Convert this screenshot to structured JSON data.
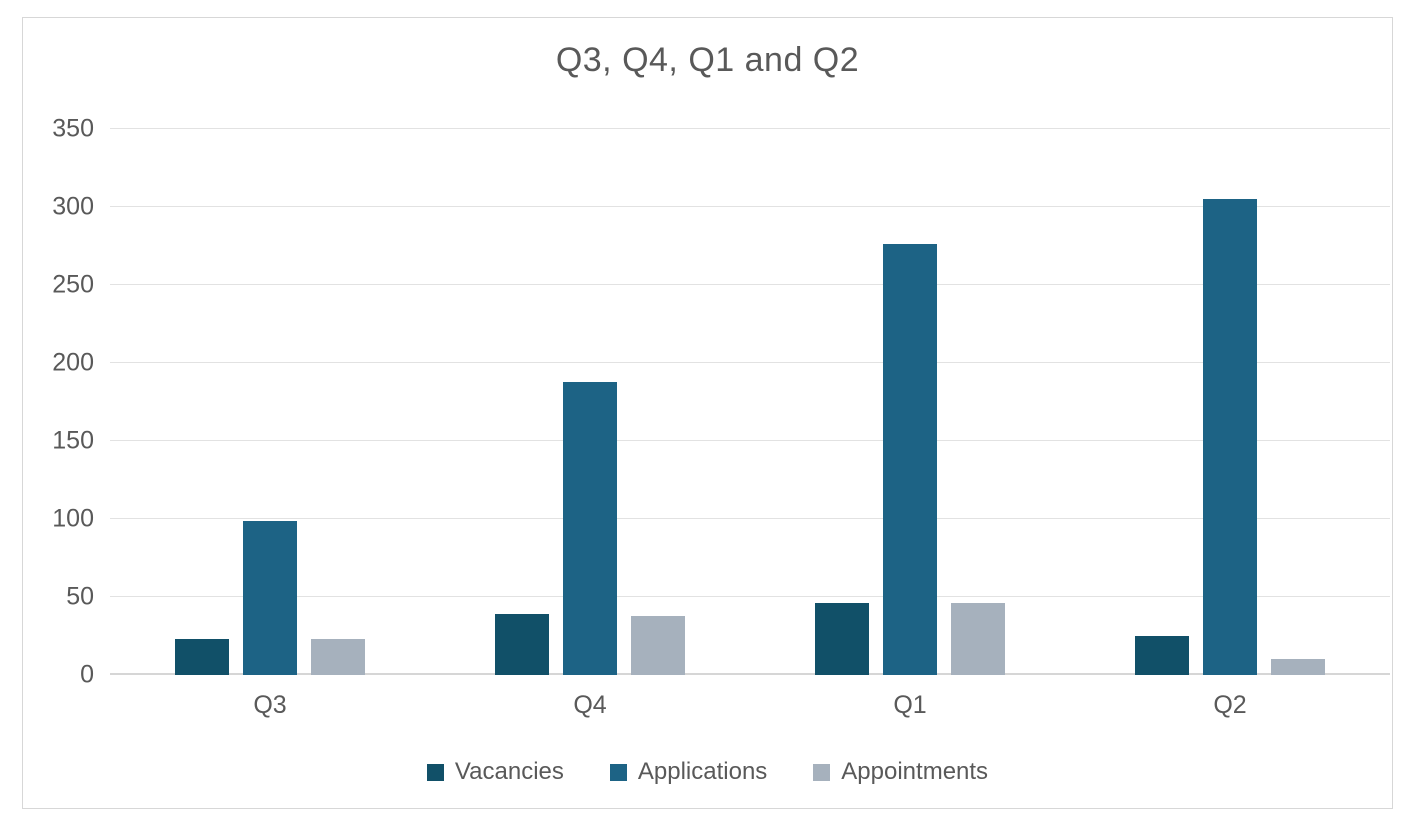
{
  "chart_data": {
    "type": "bar",
    "title": "Q3, Q4, Q1 and Q2",
    "categories": [
      "Q3",
      "Q4",
      "Q1",
      "Q2"
    ],
    "series": [
      {
        "name": "Vacancies",
        "color": "#115068",
        "values": [
          23,
          39,
          46,
          25
        ]
      },
      {
        "name": "Applications",
        "color": "#1d6385",
        "values": [
          99,
          188,
          276,
          305
        ]
      },
      {
        "name": "Appointments",
        "color": "#a6b1bd",
        "values": [
          23,
          38,
          46,
          10
        ]
      }
    ],
    "y_axis": {
      "min": 0,
      "max": 350,
      "step": 50,
      "ticks": [
        350,
        300,
        250,
        200,
        150,
        100,
        50,
        0
      ]
    },
    "xlabel": "",
    "ylabel": "",
    "grid": true,
    "legend_position": "bottom",
    "colors": {
      "text": "#595959",
      "gridline": "#e2e2e2",
      "axis_line": "#d6d6d6",
      "frame_border": "#d7d7d7",
      "background": "#ffffff"
    }
  }
}
